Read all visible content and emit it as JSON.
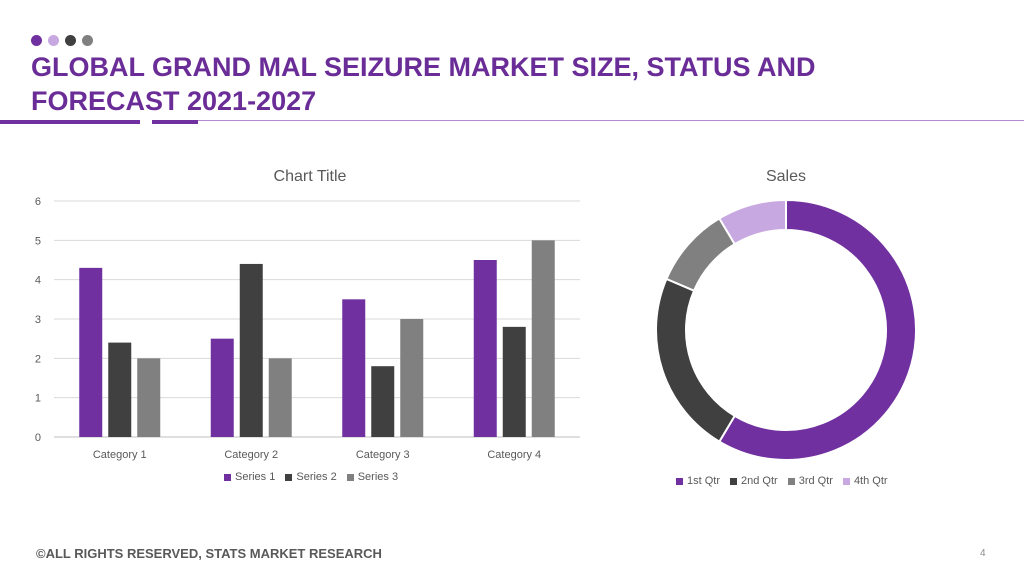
{
  "colors": {
    "accent": "#7030a0",
    "dots": [
      "#7030a0",
      "#c8a8e0",
      "#404040",
      "#808080"
    ],
    "series": [
      "#7030a0",
      "#404040",
      "#808080"
    ],
    "pie": [
      "#7030a0",
      "#404040",
      "#808080",
      "#c8a8e0"
    ]
  },
  "slide": {
    "title": "GLOBAL GRAND MAL SEIZURE MARKET SIZE, STATUS AND FORECAST 2021-2027",
    "footer": "©ALL RIGHTS RESERVED, STATS MARKET RESEARCH",
    "page_number": "4"
  },
  "chart_data": [
    {
      "type": "bar",
      "title": "Chart Title",
      "categories": [
        "Category 1",
        "Category 2",
        "Category 3",
        "Category 4"
      ],
      "series": [
        {
          "name": "Series 1",
          "values": [
            4.3,
            2.5,
            3.5,
            4.5
          ]
        },
        {
          "name": "Series 2",
          "values": [
            2.4,
            4.4,
            1.8,
            2.8
          ]
        },
        {
          "name": "Series 3",
          "values": [
            2,
            2,
            3,
            5
          ]
        }
      ],
      "ylim": [
        0,
        6
      ],
      "yticks": [
        "0",
        "1",
        "2",
        "3",
        "4",
        "5",
        "6"
      ],
      "grid": true,
      "legend": "bottom"
    },
    {
      "type": "pie",
      "title": "Sales",
      "labels": [
        "1st Qtr",
        "2nd Qtr",
        "3rd Qtr",
        "4th Qtr"
      ],
      "values": [
        8.2,
        3.2,
        1.4,
        1.2
      ],
      "legend": "bottom"
    }
  ]
}
